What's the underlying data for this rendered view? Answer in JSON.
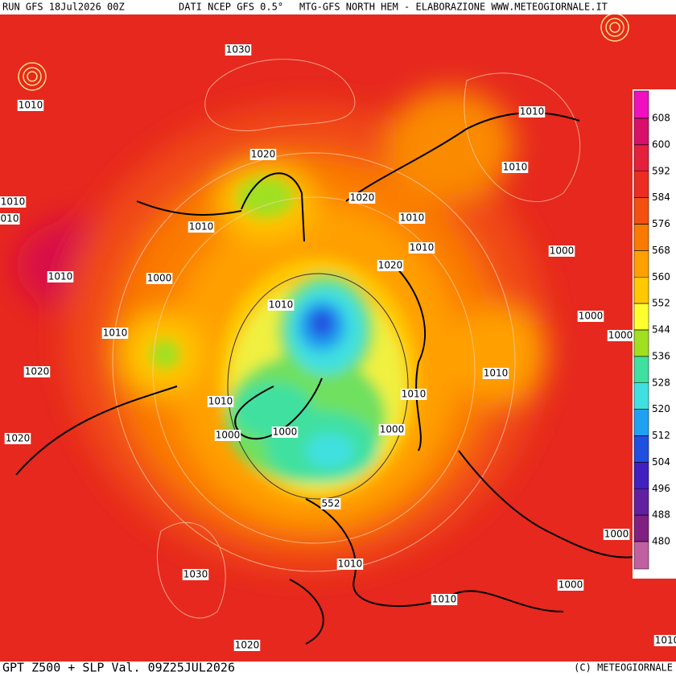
{
  "header": {
    "run": "RUN GFS 18Jul2026 00Z",
    "source": "DATI NCEP GFS 0.5°",
    "credit": "MTG-GFS NORTH HEM - ELABORAZIONE WWW.METEOGIORNALE.IT"
  },
  "isobar_labels": [
    "1030",
    "1010",
    "1010",
    "1010",
    "1020",
    "1010",
    "010",
    "1010",
    "1020",
    "1010",
    "1010",
    "1000",
    "1020",
    "1010",
    "1000",
    "1010",
    "1000",
    "1010",
    "1000",
    "1020",
    "1010",
    "1010",
    "1010",
    "1000",
    "1000",
    "1000",
    "1020",
    "552",
    "1000",
    "1010",
    "1030",
    "1000",
    "1010",
    "1020",
    "1010"
  ],
  "colorbar": {
    "ticks": [
      608,
      600,
      592,
      584,
      576,
      568,
      560,
      552,
      544,
      536,
      528,
      520,
      512,
      504,
      496,
      488,
      480
    ],
    "colors": [
      "#f010c0",
      "#d8106a",
      "#e4203c",
      "#ec2e22",
      "#f45010",
      "#fa7a00",
      "#ffa000",
      "#ffc800",
      "#ffff30",
      "#a0e020",
      "#40e0a0",
      "#40e0e0",
      "#20a0f0",
      "#2050e0",
      "#4020c0",
      "#6020a0",
      "#802080",
      "#c060a0"
    ]
  },
  "footer": {
    "title": "GPT Z500 + SLP Val. 09Z25JUL2026",
    "copyright": "(C) METEOGIORNALE"
  }
}
